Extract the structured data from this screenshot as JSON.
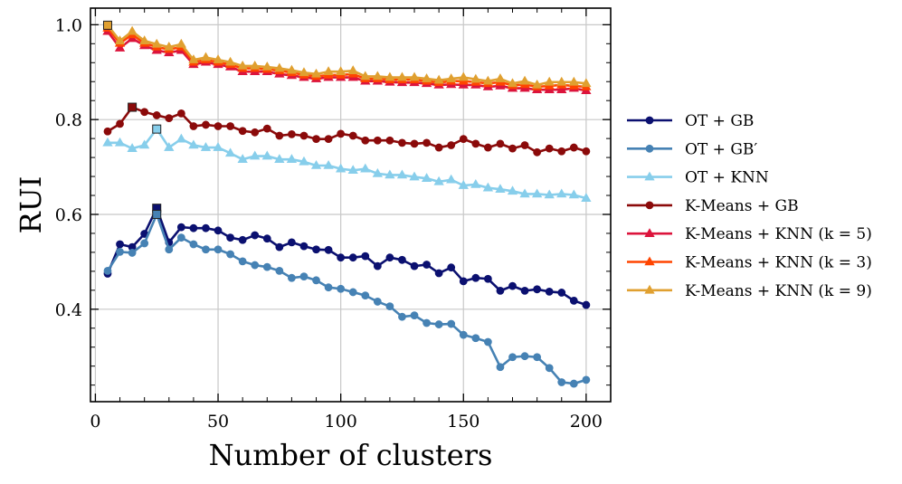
{
  "chart_data": {
    "type": "line",
    "title": "",
    "xlabel": "Number of clusters",
    "ylabel": "RUI",
    "xlim": [
      -2,
      210
    ],
    "ylim": [
      0.205,
      1.035
    ],
    "xticks": [
      0,
      50,
      100,
      150,
      200
    ],
    "xtick_labels": [
      "0",
      "50",
      "100",
      "150",
      "200"
    ],
    "yticks": [
      0.4,
      0.6,
      0.8,
      1.0
    ],
    "ytick_labels": [
      "0.4",
      "0.6",
      "0.8",
      "1.0"
    ],
    "grid": true,
    "legend_position": "right",
    "x": [
      5,
      10,
      15,
      20,
      25,
      30,
      35,
      40,
      45,
      50,
      55,
      60,
      65,
      70,
      75,
      80,
      85,
      90,
      95,
      100,
      105,
      110,
      115,
      120,
      125,
      130,
      135,
      140,
      145,
      150,
      155,
      160,
      165,
      170,
      175,
      180,
      185,
      190,
      195,
      200
    ],
    "series": [
      {
        "name": "OT + GB",
        "color": "#0b1070",
        "marker": "circle",
        "values": [
          0.475,
          0.537,
          0.531,
          0.559,
          0.613,
          0.541,
          0.573,
          0.571,
          0.571,
          0.566,
          0.551,
          0.546,
          0.556,
          0.549,
          0.531,
          0.541,
          0.533,
          0.526,
          0.525,
          0.509,
          0.509,
          0.512,
          0.491,
          0.509,
          0.504,
          0.491,
          0.494,
          0.476,
          0.488,
          0.459,
          0.466,
          0.464,
          0.439,
          0.449,
          0.439,
          0.442,
          0.437,
          0.435,
          0.418,
          0.409
        ],
        "highlight": {
          "index": 4,
          "marker": "square"
        }
      },
      {
        "name": "OT + GB′",
        "color": "#4682b4",
        "marker": "circle",
        "values": [
          0.481,
          0.521,
          0.519,
          0.539,
          0.6,
          0.526,
          0.551,
          0.537,
          0.526,
          0.526,
          0.516,
          0.501,
          0.493,
          0.489,
          0.481,
          0.466,
          0.469,
          0.461,
          0.446,
          0.443,
          0.436,
          0.429,
          0.416,
          0.406,
          0.384,
          0.387,
          0.371,
          0.368,
          0.369,
          0.346,
          0.339,
          0.331,
          0.278,
          0.299,
          0.301,
          0.299,
          0.276,
          0.246,
          0.243,
          0.251
        ],
        "highlight": {
          "index": 4,
          "marker": "square"
        }
      },
      {
        "name": "OT + KNN",
        "color": "#87ceeb",
        "marker": "triangle",
        "values": [
          0.751,
          0.751,
          0.739,
          0.746,
          0.78,
          0.741,
          0.759,
          0.746,
          0.741,
          0.741,
          0.729,
          0.716,
          0.723,
          0.723,
          0.716,
          0.716,
          0.711,
          0.703,
          0.703,
          0.696,
          0.693,
          0.696,
          0.686,
          0.683,
          0.683,
          0.679,
          0.676,
          0.669,
          0.673,
          0.661,
          0.663,
          0.656,
          0.653,
          0.649,
          0.643,
          0.643,
          0.641,
          0.643,
          0.641,
          0.634
        ],
        "highlight": {
          "index": 4,
          "marker": "square"
        }
      },
      {
        "name": "K-Means + GB",
        "color": "#8b0a0a",
        "marker": "circle",
        "values": [
          0.775,
          0.791,
          0.826,
          0.816,
          0.809,
          0.803,
          0.813,
          0.786,
          0.789,
          0.786,
          0.786,
          0.776,
          0.773,
          0.781,
          0.766,
          0.769,
          0.766,
          0.759,
          0.759,
          0.77,
          0.766,
          0.756,
          0.756,
          0.756,
          0.751,
          0.749,
          0.751,
          0.741,
          0.746,
          0.759,
          0.749,
          0.741,
          0.749,
          0.739,
          0.746,
          0.731,
          0.739,
          0.733,
          0.741,
          0.733
        ],
        "highlight": {
          "index": 2,
          "marker": "square"
        }
      },
      {
        "name": "K-Means + KNN (k = 5)",
        "color": "#dc143c",
        "marker": "triangle",
        "values": [
          0.986,
          0.951,
          0.971,
          0.956,
          0.946,
          0.941,
          0.946,
          0.916,
          0.921,
          0.916,
          0.911,
          0.901,
          0.901,
          0.901,
          0.896,
          0.893,
          0.889,
          0.886,
          0.889,
          0.889,
          0.889,
          0.881,
          0.881,
          0.879,
          0.878,
          0.878,
          0.876,
          0.873,
          0.874,
          0.873,
          0.873,
          0.869,
          0.871,
          0.866,
          0.866,
          0.863,
          0.863,
          0.863,
          0.866,
          0.861
        ]
      },
      {
        "name": "K-Means + KNN (k = 3)",
        "color": "#ff4500",
        "marker": "triangle",
        "values": [
          0.993,
          0.961,
          0.979,
          0.961,
          0.953,
          0.948,
          0.953,
          0.921,
          0.926,
          0.921,
          0.916,
          0.908,
          0.908,
          0.906,
          0.903,
          0.899,
          0.894,
          0.891,
          0.894,
          0.894,
          0.896,
          0.886,
          0.886,
          0.884,
          0.884,
          0.884,
          0.881,
          0.878,
          0.881,
          0.881,
          0.879,
          0.876,
          0.879,
          0.872,
          0.874,
          0.869,
          0.871,
          0.873,
          0.871,
          0.869
        ]
      },
      {
        "name": "K-Means + KNN (k = 9)",
        "color": "#e0a030",
        "marker": "triangle",
        "values": [
          0.999,
          0.966,
          0.986,
          0.966,
          0.959,
          0.953,
          0.959,
          0.926,
          0.931,
          0.926,
          0.921,
          0.913,
          0.913,
          0.911,
          0.908,
          0.904,
          0.899,
          0.896,
          0.901,
          0.901,
          0.903,
          0.891,
          0.891,
          0.889,
          0.889,
          0.889,
          0.886,
          0.883,
          0.886,
          0.889,
          0.885,
          0.881,
          0.886,
          0.876,
          0.881,
          0.873,
          0.879,
          0.879,
          0.879,
          0.876
        ],
        "highlight": {
          "index": 0,
          "marker": "square"
        }
      }
    ]
  }
}
